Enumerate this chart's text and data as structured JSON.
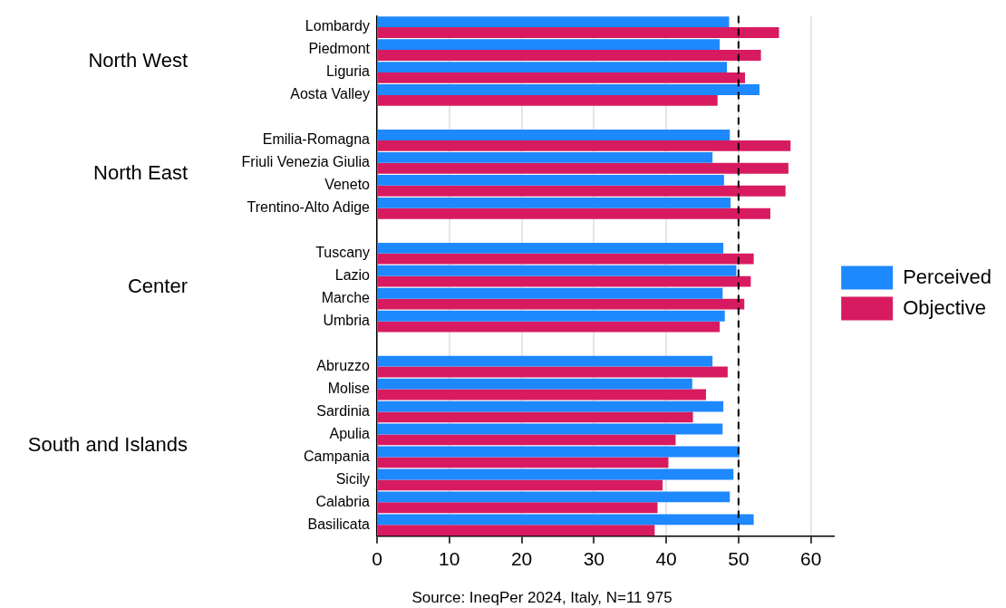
{
  "chart_data": {
    "type": "bar",
    "orientation": "horizontal",
    "categories": [
      "Lombardy",
      "Piedmont",
      "Liguria",
      "Aosta Valley",
      null,
      "Emilia-Romagna",
      "Friuli Venezia Giulia",
      "Veneto",
      "Trentino-Alto Adige",
      null,
      "Tuscany",
      "Lazio",
      "Marche",
      "Umbria",
      null,
      "Abruzzo",
      "Molise",
      "Sardinia",
      "Apulia",
      "Campania",
      "Sicily",
      "Calabria",
      "Basilicata"
    ],
    "series": [
      {
        "name": "Perceived",
        "color": "#1e88ff",
        "values": [
          48.7,
          47.4,
          48.4,
          52.9,
          null,
          48.8,
          46.4,
          48.0,
          48.9,
          null,
          47.9,
          49.7,
          47.8,
          48.1,
          null,
          46.4,
          43.6,
          47.9,
          47.8,
          50.1,
          49.3,
          48.8,
          52.1
        ]
      },
      {
        "name": "Objective",
        "color": "#d81b60",
        "values": [
          55.6,
          53.1,
          50.9,
          47.1,
          null,
          57.2,
          56.9,
          56.5,
          54.4,
          null,
          52.1,
          51.7,
          50.8,
          47.4,
          null,
          48.5,
          45.5,
          43.7,
          41.3,
          40.3,
          39.5,
          38.8,
          38.4
        ]
      }
    ],
    "xlim": [
      0,
      63.2
    ],
    "xticks": [
      0,
      10,
      20,
      30,
      40,
      50,
      60
    ],
    "ref_lines": [
      {
        "axis": "x",
        "value": 50,
        "color": "#000000",
        "line_style": "dashed"
      }
    ],
    "grid": "x",
    "legend": "right",
    "annotations": [
      "North West",
      "North East",
      "Center",
      "South and Islands",
      "Source: IneqPer 2024, Italy, N=11 975"
    ]
  }
}
